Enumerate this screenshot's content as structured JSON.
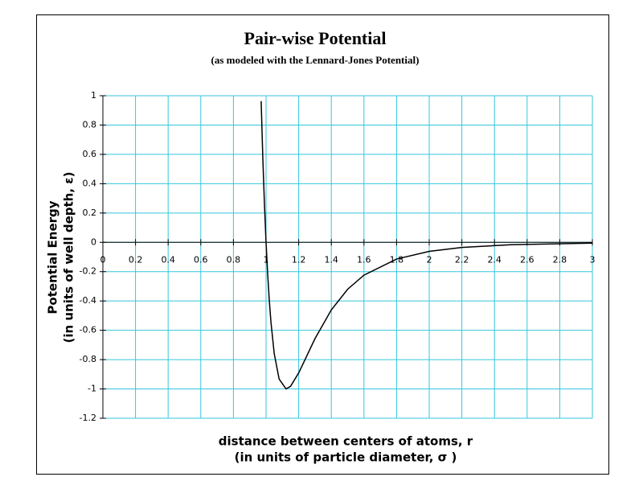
{
  "chart_data": {
    "type": "line",
    "title": "Pair-wise Potential",
    "subtitle": "(as modeled with the Lennard-Jones Potential)",
    "x_label": [
      "distance between centers of atoms, r",
      "(in units of particle diameter, σ )"
    ],
    "y_label": [
      "Potential Energy",
      "(in units of well depth, ε)"
    ],
    "x": [
      0.97,
      0.98,
      0.99,
      1.0,
      1.01,
      1.02,
      1.03,
      1.05,
      1.08,
      1.1225,
      1.15,
      1.2,
      1.3,
      1.4,
      1.5,
      1.6,
      1.8,
      2.0,
      2.2,
      2.5,
      3.0
    ],
    "series": [
      {
        "name": "Lennard-Jones",
        "color": "#000000",
        "values": [
          0.963,
          0.582,
          0.264,
          0,
          -0.218,
          -0.398,
          -0.544,
          -0.758,
          -0.932,
          -1.0,
          -0.982,
          -0.891,
          -0.657,
          -0.461,
          -0.32,
          -0.224,
          -0.114,
          -0.0615,
          -0.035,
          -0.0163,
          -0.0055
        ]
      }
    ],
    "xlim": [
      0,
      3
    ],
    "ylim": [
      -1.2,
      1
    ],
    "xticks": [
      0,
      0.2,
      0.4,
      0.6,
      0.8,
      1,
      1.2,
      1.4,
      1.6,
      1.8,
      2,
      2.2,
      2.4,
      2.6,
      2.8,
      3
    ],
    "yticks": [
      1,
      0.8,
      0.6,
      0.4,
      0.2,
      0,
      -0.2,
      -0.4,
      -0.6,
      -0.8,
      -1,
      -1.2
    ],
    "grid": true,
    "grid_color": "#33c6dd"
  }
}
